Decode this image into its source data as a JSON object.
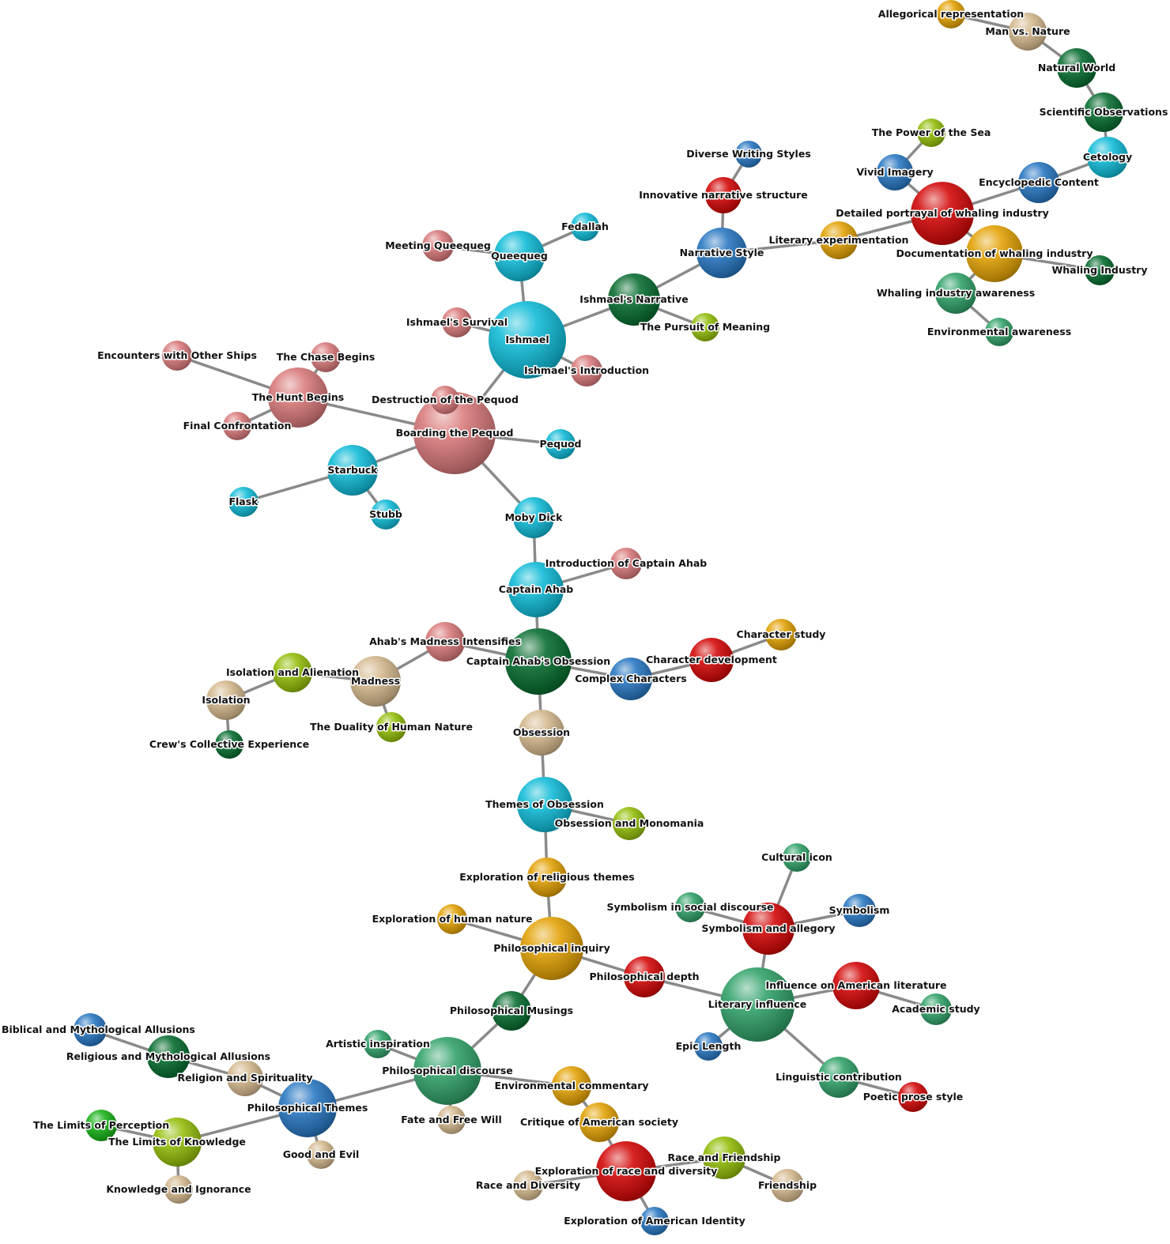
{
  "colors": {
    "pink": "#d97b7c",
    "cyan": "#13bcd8",
    "darkgreen": "#0b6e32",
    "blue": "#2b78c2",
    "red": "#d40b0b",
    "gold": "#e3a308",
    "tan": "#d5b98f",
    "lime": "#94bf0d",
    "teal": "#34a36b",
    "green": "#1bb31b",
    "edge": "#8a8a8a"
  },
  "nodes": [
    {
      "id": "ishmael",
      "label": "Ishmael",
      "color": "cyan"
    },
    {
      "id": "queequeg",
      "label": "Queequeg",
      "color": "cyan"
    },
    {
      "id": "fedallah",
      "label": "Fedallah",
      "color": "cyan"
    },
    {
      "id": "meeting_queequeg",
      "label": "Meeting Queequeg",
      "color": "pink"
    },
    {
      "id": "ishmaels_survival",
      "label": "Ishmael's Survival",
      "color": "pink"
    },
    {
      "id": "ishmaels_intro",
      "label": "Ishmael's Introduction",
      "color": "pink"
    },
    {
      "id": "ishmaels_narrative",
      "label": "Ishmael's Narrative",
      "color": "darkgreen"
    },
    {
      "id": "pursuit_meaning",
      "label": "The Pursuit of Meaning",
      "color": "lime"
    },
    {
      "id": "narrative_style",
      "label": "Narrative Style",
      "color": "blue"
    },
    {
      "id": "innovative_structure",
      "label": "Innovative narrative structure",
      "color": "red"
    },
    {
      "id": "diverse_writing",
      "label": "Diverse Writing Styles",
      "color": "blue"
    },
    {
      "id": "literary_experimentation",
      "label": "Literary experimentation",
      "color": "gold"
    },
    {
      "id": "detailed_whaling",
      "label": "Detailed portrayal of whaling industry",
      "color": "red"
    },
    {
      "id": "vivid_imagery",
      "label": "Vivid Imagery",
      "color": "blue"
    },
    {
      "id": "power_sea",
      "label": "The Power of the Sea",
      "color": "lime"
    },
    {
      "id": "encyclopedic",
      "label": "Encyclopedic Content",
      "color": "blue"
    },
    {
      "id": "cetology",
      "label": "Cetology",
      "color": "cyan"
    },
    {
      "id": "scientific_obs",
      "label": "Scientific Observations",
      "color": "darkgreen"
    },
    {
      "id": "natural_world",
      "label": "Natural World",
      "color": "darkgreen"
    },
    {
      "id": "man_vs_nature",
      "label": "Man vs. Nature",
      "color": "tan"
    },
    {
      "id": "allegorical",
      "label": "Allegorical representation",
      "color": "gold"
    },
    {
      "id": "documentation_whaling",
      "label": "Documentation of whaling industry",
      "color": "gold"
    },
    {
      "id": "whaling_industry",
      "label": "Whaling Industry",
      "color": "darkgreen"
    },
    {
      "id": "whaling_awareness",
      "label": "Whaling industry awareness",
      "color": "teal"
    },
    {
      "id": "environmental_awareness",
      "label": "Environmental awareness",
      "color": "teal"
    },
    {
      "id": "boarding_pequod",
      "label": "Boarding the Pequod",
      "color": "pink"
    },
    {
      "id": "destruction_pequod",
      "label": "Destruction of the Pequod",
      "color": "pink"
    },
    {
      "id": "pequod",
      "label": "Pequod",
      "color": "cyan"
    },
    {
      "id": "hunt_begins",
      "label": "The Hunt Begins",
      "color": "pink"
    },
    {
      "id": "chase_begins",
      "label": "The Chase Begins",
      "color": "pink"
    },
    {
      "id": "encounters_ships",
      "label": "Encounters with Other Ships",
      "color": "pink"
    },
    {
      "id": "final_confrontation",
      "label": "Final Confrontation",
      "color": "pink"
    },
    {
      "id": "starbuck",
      "label": "Starbuck",
      "color": "cyan"
    },
    {
      "id": "flask",
      "label": "Flask",
      "color": "cyan"
    },
    {
      "id": "stubb",
      "label": "Stubb",
      "color": "cyan"
    },
    {
      "id": "moby_dick",
      "label": "Moby Dick",
      "color": "cyan"
    },
    {
      "id": "captain_ahab",
      "label": "Captain Ahab",
      "color": "cyan"
    },
    {
      "id": "intro_ahab",
      "label": "Introduction of Captain Ahab",
      "color": "pink"
    },
    {
      "id": "ahabs_obsession",
      "label": "Captain Ahab's Obsession",
      "color": "darkgreen"
    },
    {
      "id": "ahabs_madness",
      "label": "Ahab's Madness Intensifies",
      "color": "pink"
    },
    {
      "id": "madness",
      "label": "Madness",
      "color": "tan"
    },
    {
      "id": "isolation_alienation",
      "label": "Isolation and Alienation",
      "color": "lime"
    },
    {
      "id": "isolation",
      "label": "Isolation",
      "color": "tan"
    },
    {
      "id": "crews_experience",
      "label": "Crew's Collective Experience",
      "color": "darkgreen"
    },
    {
      "id": "duality",
      "label": "The Duality of Human Nature",
      "color": "lime"
    },
    {
      "id": "complex_characters",
      "label": "Complex Characters",
      "color": "blue"
    },
    {
      "id": "character_development",
      "label": "Character development",
      "color": "red"
    },
    {
      "id": "character_study",
      "label": "Character study",
      "color": "gold"
    },
    {
      "id": "obsession",
      "label": "Obsession",
      "color": "tan"
    },
    {
      "id": "themes_obsession",
      "label": "Themes of Obsession",
      "color": "cyan"
    },
    {
      "id": "obsession_monomania",
      "label": "Obsession and Monomania",
      "color": "lime"
    },
    {
      "id": "religious_themes",
      "label": "Exploration of religious themes",
      "color": "gold"
    },
    {
      "id": "philosophical_inquiry",
      "label": "Philosophical inquiry",
      "color": "gold"
    },
    {
      "id": "human_nature",
      "label": "Exploration of human nature",
      "color": "gold"
    },
    {
      "id": "philosophical_depth",
      "label": "Philosophical depth",
      "color": "red"
    },
    {
      "id": "literary_influence",
      "label": "Literary influence",
      "color": "teal"
    },
    {
      "id": "symbolism_allegory",
      "label": "Symbolism and allegory",
      "color": "red"
    },
    {
      "id": "cultural_icon",
      "label": "Cultural icon",
      "color": "teal"
    },
    {
      "id": "symbolism_social",
      "label": "Symbolism in social discourse",
      "color": "teal"
    },
    {
      "id": "symbolism",
      "label": "Symbolism",
      "color": "blue"
    },
    {
      "id": "influence_american_lit",
      "label": "Influence on American literature",
      "color": "red"
    },
    {
      "id": "academic_study",
      "label": "Academic study",
      "color": "teal"
    },
    {
      "id": "epic_length",
      "label": "Epic Length",
      "color": "blue"
    },
    {
      "id": "linguistic_contribution",
      "label": "Linguistic contribution",
      "color": "teal"
    },
    {
      "id": "poetic_prose",
      "label": "Poetic prose style",
      "color": "red"
    },
    {
      "id": "philosophical_musings",
      "label": "Philosophical Musings",
      "color": "darkgreen"
    },
    {
      "id": "philosophical_discourse",
      "label": "Philosophical discourse",
      "color": "teal"
    },
    {
      "id": "artistic_inspiration",
      "label": "Artistic inspiration",
      "color": "teal"
    },
    {
      "id": "fate_free_will",
      "label": "Fate and Free Will",
      "color": "tan"
    },
    {
      "id": "environmental_commentary",
      "label": "Environmental commentary",
      "color": "gold"
    },
    {
      "id": "critique_american_society",
      "label": "Critique of American society",
      "color": "gold"
    },
    {
      "id": "race_diversity_exploration",
      "label": "Exploration of race and diversity",
      "color": "red"
    },
    {
      "id": "race_friendship",
      "label": "Race and Friendship",
      "color": "lime"
    },
    {
      "id": "friendship",
      "label": "Friendship",
      "color": "tan"
    },
    {
      "id": "race_diversity",
      "label": "Race and Diversity",
      "color": "tan"
    },
    {
      "id": "american_identity",
      "label": "Exploration of American Identity",
      "color": "blue"
    },
    {
      "id": "philosophical_themes",
      "label": "Philosophical Themes",
      "color": "blue"
    },
    {
      "id": "good_evil",
      "label": "Good and Evil",
      "color": "tan"
    },
    {
      "id": "religion_spirituality",
      "label": "Religion and Spirituality",
      "color": "tan"
    },
    {
      "id": "religious_allusions",
      "label": "Religious and Mythological Allusions",
      "color": "darkgreen"
    },
    {
      "id": "biblical_allusions",
      "label": "Biblical and Mythological Allusions",
      "color": "blue"
    },
    {
      "id": "limits_knowledge",
      "label": "The Limits of Knowledge",
      "color": "lime"
    },
    {
      "id": "limits_perception",
      "label": "The Limits of Perception",
      "color": "green"
    },
    {
      "id": "knowledge_ignorance",
      "label": "Knowledge and Ignorance",
      "color": "tan"
    }
  ],
  "edges": [
    [
      "ishmael",
      "queequeg"
    ],
    [
      "queequeg",
      "fedallah"
    ],
    [
      "queequeg",
      "meeting_queequeg"
    ],
    [
      "ishmael",
      "ishmaels_survival"
    ],
    [
      "ishmael",
      "ishmaels_intro"
    ],
    [
      "ishmael",
      "ishmaels_narrative"
    ],
    [
      "ishmaels_narrative",
      "pursuit_meaning"
    ],
    [
      "ishmaels_narrative",
      "narrative_style"
    ],
    [
      "narrative_style",
      "innovative_structure"
    ],
    [
      "innovative_structure",
      "diverse_writing"
    ],
    [
      "narrative_style",
      "literary_experimentation"
    ],
    [
      "literary_experimentation",
      "detailed_whaling"
    ],
    [
      "detailed_whaling",
      "vivid_imagery"
    ],
    [
      "vivid_imagery",
      "power_sea"
    ],
    [
      "detailed_whaling",
      "encyclopedic"
    ],
    [
      "encyclopedic",
      "cetology"
    ],
    [
      "cetology",
      "scientific_obs"
    ],
    [
      "scientific_obs",
      "natural_world"
    ],
    [
      "natural_world",
      "man_vs_nature"
    ],
    [
      "man_vs_nature",
      "allegorical"
    ],
    [
      "detailed_whaling",
      "documentation_whaling"
    ],
    [
      "documentation_whaling",
      "whaling_industry"
    ],
    [
      "documentation_whaling",
      "whaling_awareness"
    ],
    [
      "whaling_awareness",
      "environmental_awareness"
    ],
    [
      "ishmael",
      "boarding_pequod"
    ],
    [
      "boarding_pequod",
      "destruction_pequod"
    ],
    [
      "boarding_pequod",
      "pequod"
    ],
    [
      "boarding_pequod",
      "hunt_begins"
    ],
    [
      "hunt_begins",
      "chase_begins"
    ],
    [
      "hunt_begins",
      "encounters_ships"
    ],
    [
      "hunt_begins",
      "final_confrontation"
    ],
    [
      "boarding_pequod",
      "starbuck"
    ],
    [
      "starbuck",
      "flask"
    ],
    [
      "starbuck",
      "stubb"
    ],
    [
      "boarding_pequod",
      "moby_dick"
    ],
    [
      "moby_dick",
      "captain_ahab"
    ],
    [
      "captain_ahab",
      "intro_ahab"
    ],
    [
      "captain_ahab",
      "ahabs_obsession"
    ],
    [
      "ahabs_obsession",
      "ahabs_madness"
    ],
    [
      "ahabs_madness",
      "madness"
    ],
    [
      "madness",
      "isolation_alienation"
    ],
    [
      "isolation_alienation",
      "isolation"
    ],
    [
      "isolation",
      "crews_experience"
    ],
    [
      "madness",
      "duality"
    ],
    [
      "ahabs_obsession",
      "complex_characters"
    ],
    [
      "complex_characters",
      "character_development"
    ],
    [
      "character_development",
      "character_study"
    ],
    [
      "ahabs_obsession",
      "obsession"
    ],
    [
      "obsession",
      "themes_obsession"
    ],
    [
      "themes_obsession",
      "obsession_monomania"
    ],
    [
      "themes_obsession",
      "religious_themes"
    ],
    [
      "religious_themes",
      "philosophical_inquiry"
    ],
    [
      "philosophical_inquiry",
      "human_nature"
    ],
    [
      "philosophical_inquiry",
      "philosophical_depth"
    ],
    [
      "philosophical_depth",
      "literary_influence"
    ],
    [
      "literary_influence",
      "symbolism_allegory"
    ],
    [
      "symbolism_allegory",
      "cultural_icon"
    ],
    [
      "symbolism_allegory",
      "symbolism_social"
    ],
    [
      "symbolism_allegory",
      "symbolism"
    ],
    [
      "literary_influence",
      "influence_american_lit"
    ],
    [
      "influence_american_lit",
      "academic_study"
    ],
    [
      "literary_influence",
      "epic_length"
    ],
    [
      "literary_influence",
      "linguistic_contribution"
    ],
    [
      "linguistic_contribution",
      "poetic_prose"
    ],
    [
      "philosophical_inquiry",
      "philosophical_musings"
    ],
    [
      "philosophical_musings",
      "philosophical_discourse"
    ],
    [
      "philosophical_discourse",
      "artistic_inspiration"
    ],
    [
      "philosophical_discourse",
      "fate_free_will"
    ],
    [
      "philosophical_discourse",
      "environmental_commentary"
    ],
    [
      "environmental_commentary",
      "critique_american_society"
    ],
    [
      "critique_american_society",
      "race_diversity_exploration"
    ],
    [
      "race_diversity_exploration",
      "race_friendship"
    ],
    [
      "race_friendship",
      "friendship"
    ],
    [
      "race_diversity_exploration",
      "race_diversity"
    ],
    [
      "race_diversity_exploration",
      "american_identity"
    ],
    [
      "philosophical_discourse",
      "philosophical_themes"
    ],
    [
      "philosophical_themes",
      "good_evil"
    ],
    [
      "philosophical_themes",
      "religion_spirituality"
    ],
    [
      "religion_spirituality",
      "religious_allusions"
    ],
    [
      "religious_allusions",
      "biblical_allusions"
    ],
    [
      "philosophical_themes",
      "limits_knowledge"
    ],
    [
      "limits_knowledge",
      "limits_perception"
    ],
    [
      "limits_knowledge",
      "knowledge_ignorance"
    ]
  ]
}
